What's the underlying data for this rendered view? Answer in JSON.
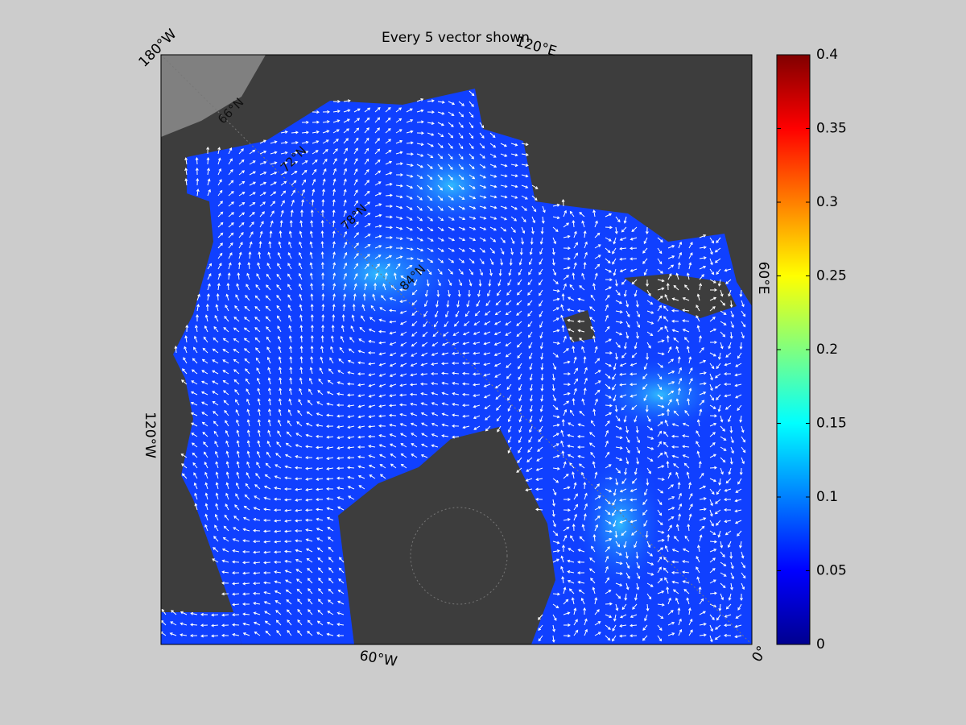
{
  "title": "Every 5 vector shown",
  "map": {
    "lon_labels": [
      "180°W",
      "120°E",
      "60°E",
      "0°",
      "60°W",
      "120°W"
    ],
    "lat_labels": [
      "66°N",
      "72°N",
      "78°N",
      "84°N"
    ]
  },
  "colorbar": {
    "colormap": "jet",
    "lim": [
      0,
      0.4
    ],
    "ticks": [
      0,
      0.05,
      0.1,
      0.15,
      0.2,
      0.25,
      0.3,
      0.35,
      0.4
    ]
  }
}
